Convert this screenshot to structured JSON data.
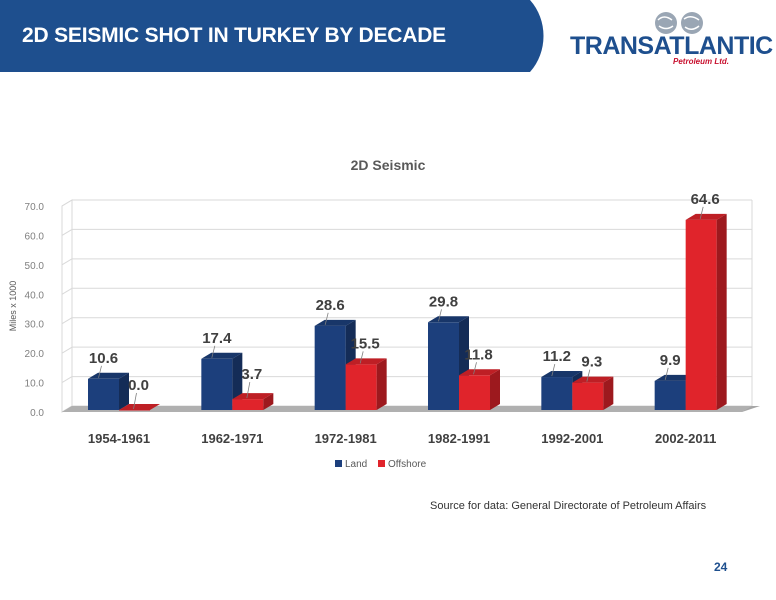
{
  "slide": {
    "title": "2D SEISMIC SHOT IN TURKEY BY DECADE",
    "logo_main": "TRANSATLANTIC",
    "logo_sub": "Petroleum Ltd.",
    "source": "Source for data: General Directorate of Petroleum Affairs",
    "page_number": "24"
  },
  "colors": {
    "header_bg": "#1e4f8e",
    "land": "#1c3f7c",
    "offshore": "#e0242b",
    "floor": "#a6a6a6"
  },
  "chart_data": {
    "type": "bar",
    "title": "2D Seismic",
    "ylabel": "Miles x 1000",
    "categories": [
      "1954-1961",
      "1962-1971",
      "1972-1981",
      "1982-1991",
      "1992-2001",
      "2002-2011"
    ],
    "series": [
      {
        "name": "Land",
        "values": [
          10.6,
          17.4,
          28.6,
          29.8,
          11.2,
          9.9
        ]
      },
      {
        "name": "Offshore",
        "values": [
          0.0,
          3.7,
          15.5,
          11.8,
          9.3,
          64.6
        ]
      }
    ],
    "data_labels": {
      "land": [
        "10.6",
        "17.4",
        "28.6",
        "29.8",
        "11.2",
        "9.9"
      ],
      "offshore": [
        "0.0",
        "3.7",
        "15.5",
        "11.8",
        "9.3",
        "64.6"
      ]
    },
    "y_ticks": [
      "0.0",
      "10.0",
      "20.0",
      "30.0",
      "40.0",
      "50.0",
      "60.0",
      "70.0"
    ],
    "ylim": [
      0,
      70
    ],
    "grid": true,
    "legend_position": "bottom",
    "three_d": true
  }
}
